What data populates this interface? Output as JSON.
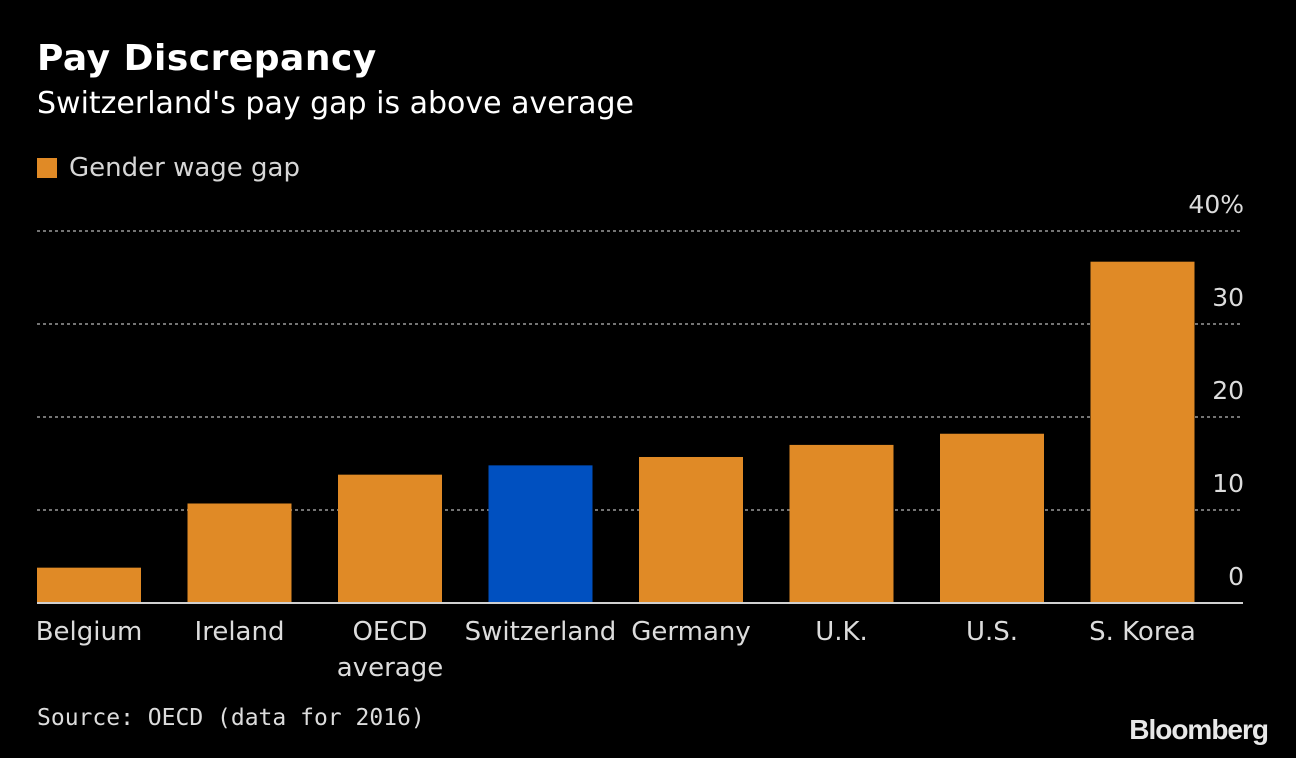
{
  "title": "Pay Discrepancy",
  "subtitle": "Switzerland's pay gap is above average",
  "legend": {
    "label": "Gender wage gap",
    "color": "#e08a26"
  },
  "source": "Source: OECD (data for 2016)",
  "brand": "Bloomberg",
  "colors": {
    "bar": "#e08a26",
    "highlight": "#0050c0",
    "grid": "#9a9a9a",
    "axis": "#d0d0d0",
    "text": "#dcdcdc"
  },
  "chart_data": {
    "type": "bar",
    "categories": [
      "Belgium",
      "Ireland",
      "OECD\naverage",
      "Switzerland",
      "Germany",
      "U.K.",
      "U.S.",
      "S. Korea"
    ],
    "series": [
      {
        "name": "Gender wage gap",
        "values": [
          3.8,
          10.7,
          13.8,
          14.8,
          15.7,
          17.0,
          18.2,
          36.7
        ]
      }
    ],
    "highlight_category": "Switzerland",
    "y_ticks": [
      "0",
      "10",
      "20",
      "30",
      "40%"
    ],
    "ylim": [
      0,
      40
    ],
    "y_axis_position": "right",
    "grid": true,
    "legend_position": "top-left",
    "xlabel": "",
    "ylabel": ""
  }
}
